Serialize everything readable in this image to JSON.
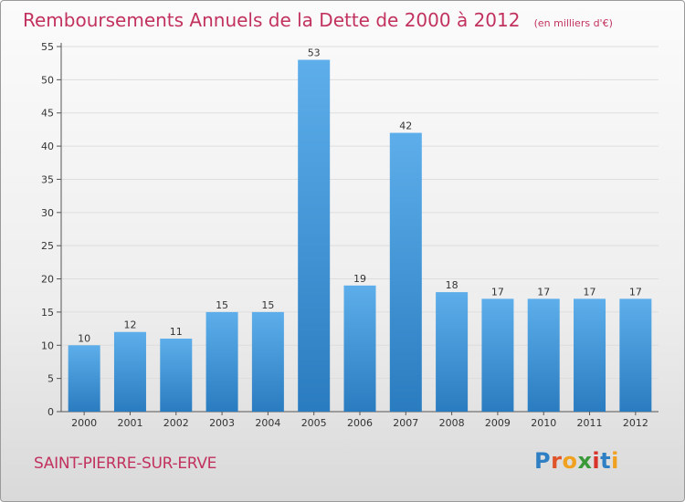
{
  "title": "Remboursements Annuels de la Dette de 2000 à 2012",
  "unit": "(en milliers d'€)",
  "commune": "SAINT-PIERRE-SUR-ERVE",
  "logo": {
    "text": "Proxiti",
    "letters": [
      {
        "ch": "P",
        "color": "#2f7fc4"
      },
      {
        "ch": "r",
        "color": "#e0542a"
      },
      {
        "ch": "o",
        "color": "#f0a120"
      },
      {
        "ch": "x",
        "color": "#3a9a3a"
      },
      {
        "ch": "i",
        "color": "#d8332a"
      },
      {
        "ch": "t",
        "color": "#2f7fc4"
      },
      {
        "ch": "i",
        "color": "#f0a120"
      }
    ]
  },
  "colors": {
    "bar_light": "#5daeea",
    "bar_dark": "#2a7cc0",
    "title": "#c2325e",
    "grid": "#dddddd"
  },
  "chart_data": {
    "type": "bar",
    "title": "Remboursements Annuels de la Dette de 2000 à 2012",
    "categories": [
      "2000",
      "2001",
      "2002",
      "2003",
      "2004",
      "2005",
      "2006",
      "2007",
      "2008",
      "2009",
      "2010",
      "2011",
      "2012"
    ],
    "values": [
      10,
      12,
      11,
      15,
      15,
      53,
      19,
      42,
      18,
      17,
      17,
      17,
      17
    ],
    "ylim": [
      0,
      55
    ],
    "yticks": [
      0,
      5,
      10,
      15,
      20,
      25,
      30,
      35,
      40,
      45,
      50,
      55
    ],
    "grid": true,
    "data_labels": true
  }
}
